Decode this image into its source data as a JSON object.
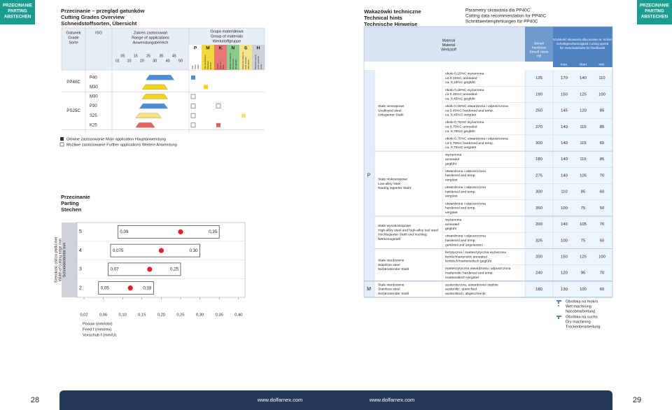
{
  "tabs": {
    "left": [
      "PRZECINANIE",
      "PARTING",
      "ABSTECHEN"
    ],
    "right": [
      "PRZECINANIE",
      "PARTING",
      "ABSTECHEN"
    ]
  },
  "left": {
    "title": [
      "Przecinanie – przegląd gatunków",
      "Cutting Grades Overview",
      "Schneidstoffsorten, Übersicht"
    ],
    "grades_table": {
      "grade_header": [
        "Gatunek",
        "Grade",
        "Sorte"
      ],
      "iso_header": "ISO",
      "range_header": [
        "Zakres zastosowań",
        "Range of applications",
        "Anwendungsbereich"
      ],
      "range_ticks_top": [
        {
          "value": 5,
          "label": "05"
        },
        15,
        25,
        35,
        45
      ],
      "range_ticks_bottom": [
        {
          "value": 1,
          "label": "01"
        },
        10,
        20,
        30,
        40,
        50
      ],
      "range_lim": [
        1,
        50
      ],
      "groups_header": [
        "Grupa materiałowa",
        "Group of materials",
        "Werkstoffgruppe"
      ],
      "groups": [
        {
          "letter": "P",
          "color": "#4a8fd8",
          "desc": [
            "Stal",
            "Steel",
            "Stahl"
          ]
        },
        {
          "letter": "M",
          "color": "#f3d31c",
          "desc": [
            "Stal nierdzewna",
            "Stainless",
            "Rostfrei"
          ]
        },
        {
          "letter": "K",
          "color": "#e8635c",
          "desc": [
            "Żeliwo",
            "Cast iron",
            "Guss"
          ]
        },
        {
          "letter": "N",
          "color": "#7cc47a",
          "desc": [
            "Metale nieżelazne",
            "Non-ferrous",
            "NE-Metalle"
          ]
        },
        {
          "letter": "S",
          "color": "#f6e27a",
          "desc": [
            "Stopy żaroodporne",
            "Heat resistant",
            "Warmfeste"
          ]
        },
        {
          "letter": "H",
          "color": "#c9cdd2",
          "desc": [
            "Materiały twarde",
            "Hard materials",
            "Harte"
          ]
        }
      ],
      "grades": [
        {
          "name": "PP40C",
          "rows": [
            {
              "iso": "P40",
              "range": [
                23,
                45
              ],
              "markers": [
                "main",
                null,
                null,
                null,
                null,
                null
              ]
            },
            {
              "iso": "M30",
              "range": [
                20,
                40
              ],
              "markers": [
                null,
                "main",
                null,
                null,
                null,
                null
              ]
            }
          ]
        },
        {
          "name": "PS25C",
          "rows": [
            {
              "iso": "M30",
              "range": [
                20,
                40
              ],
              "markers": [
                "further",
                null,
                null,
                null,
                null,
                null
              ]
            },
            {
              "iso": "P30",
              "range": [
                18,
                40
              ],
              "markers": [
                "further",
                null,
                "further",
                null,
                null,
                null
              ]
            },
            {
              "iso": "S25",
              "range": [
                15,
                35
              ],
              "markers": [
                "further",
                null,
                null,
                null,
                "main",
                null
              ]
            },
            {
              "iso": "K25",
              "range": [
                15,
                30
              ],
              "markers": [
                "further",
                null,
                "main",
                null,
                null,
                null
              ]
            }
          ]
        }
      ]
    },
    "legend": {
      "main": "Główne zastosowanie Main application Hauptanwendung",
      "further": "Możliwe zastosowanie Further applications Weitere Anwendung"
    }
  },
  "chart_data": {
    "type": "range",
    "title": [
      "Przecinanie",
      "Parting",
      "Stechen"
    ],
    "y_label": [
      "Szerokość ostrza płytki mm",
      "Width of cutting edge mm",
      "Schneidenbreite mm"
    ],
    "x_label": [
      "Posuw (mm/obr)",
      "Feed f (mm/rev)",
      "Vorschub f (mm/U)"
    ],
    "categories": [
      "5",
      "4",
      "3",
      "2"
    ],
    "starts": [
      0.09,
      0.075,
      0.07,
      0.05
    ],
    "start_labels": [
      "0,09",
      "0,075",
      "0,07",
      "0,05"
    ],
    "ends": [
      0.35,
      0.3,
      0.25,
      0.18
    ],
    "end_labels": [
      "0,35",
      "0,30",
      "0,25",
      "0,18"
    ],
    "recommended": [
      0.25,
      0.2,
      0.17,
      0.12
    ],
    "xlim": [
      0.02,
      0.4
    ],
    "xticks": [
      {
        "value": 0.02,
        "label": "0,02"
      },
      {
        "value": 0.06,
        "label": "0,06"
      },
      {
        "value": 0.1,
        "label": "0,10"
      },
      {
        "value": 0.15,
        "label": "0,15"
      },
      {
        "value": 0.2,
        "label": "0,20"
      },
      {
        "value": 0.25,
        "label": "0,25"
      },
      {
        "value": 0.3,
        "label": "0,30"
      },
      {
        "value": 0.35,
        "label": "0,35"
      },
      {
        "value": 0.4,
        "label": "0,40"
      }
    ],
    "bar_color": "#ffffff",
    "dot_color": "#e0202a"
  },
  "right": {
    "title": [
      "Wakazówki techniczne",
      "Technical hints",
      "Technische Hinweise"
    ],
    "subtitle": [
      "Parametry skrawania dla PP40C",
      "Cutting data recommendation for PP40C",
      "Schnittwertempfehlungen für PP40C"
    ],
    "material_header": [
      "Material",
      "Material",
      "Werkstoff"
    ],
    "hardness_header": [
      "Brinell",
      "hardness",
      "Brinell Härte",
      "HB"
    ],
    "speed_header": [
      "Szybkość skrawania dla posuwu w: m/min",
      "Schnittgeschwindigkeit Cutting speed",
      "für Vorschub/Zahn for feed/tooth"
    ],
    "speed_sub": [
      "max.",
      "Start",
      "min."
    ],
    "iso_blocks": [
      {
        "letter": "P",
        "groups": [
          {
            "name": [
              "Stale niestopowe",
              "Unalloyed steel",
              "Unlegierter Stahl"
            ],
            "rows": [
              {
                "desc": [
                  "około 0,15%C wyżarzona",
                  "ca 0,15%C annealed",
                  "ca. 0,15%C geglüht"
                ],
                "hb": 125,
                "speed": [
                  170,
                  140,
                  110
                ]
              },
              {
                "desc": [
                  "około 0,45%C wyżarzona",
                  "ca 0,45%C annealed",
                  "ca. 0,45%C geglüht"
                ],
                "hb": 190,
                "speed": [
                  150,
                  125,
                  100
                ]
              },
              {
                "desc": [
                  "około 0,45%C utwardzona i odpuszczona",
                  "ca 0,45%C hardened and temp.",
                  "ca. 0,45%C vergütet"
                ],
                "hb": 250,
                "speed": [
                  145,
                  120,
                  85
                ]
              },
              {
                "desc": [
                  "około 0,75%C wyżarzona",
                  "ca 0,75%C annealed",
                  "ca. 0,75%C geglüht"
                ],
                "hb": 270,
                "speed": [
                  140,
                  115,
                  85
                ]
              },
              {
                "desc": [
                  "około 0,75%C utwardzona i odpuszczona",
                  "ca 0,75%C hardened and temp.",
                  "ca. 0,75%C vergütet"
                ],
                "hb": 300,
                "speed": [
                  140,
                  115,
                  65
                ]
              }
            ]
          },
          {
            "name": [
              "Stale niskostopowe",
              "Low-alloy steel",
              "Niedrig legierter Stahl"
            ],
            "rows": [
              {
                "desc": [
                  "wyżarzona",
                  "annealed",
                  "geglüht"
                ],
                "hb": 180,
                "speed": [
                  140,
                  115,
                  85
                ]
              },
              {
                "desc": [
                  "utwardzona i odpuszczona",
                  "hardened and temp.",
                  "vergütet"
                ],
                "hb": 275,
                "speed": [
                  140,
                  105,
                  70
                ]
              },
              {
                "desc": [
                  "utwardzona i odpuszczona",
                  "hardened and temp.",
                  "vergütet"
                ],
                "hb": 300,
                "speed": [
                  110,
                  85,
                  60
                ]
              },
              {
                "desc": [
                  "utwardzona i odpuszczona",
                  "hardened and temp.",
                  "vergütet"
                ],
                "hb": 350,
                "speed": [
                  100,
                  75,
                  50
                ]
              }
            ]
          },
          {
            "name": [
              "Stale wysokostopowe",
              "High-alloy steel and high-alloy tool steel",
              "Hochlegierter Stahl und hochleg.",
              "Werkzeugstahl"
            ],
            "rows": [
              {
                "desc": [
                  "wyżarzona",
                  "annealed",
                  "geglüht"
                ],
                "hb": 200,
                "speed": [
                  140,
                  105,
                  70
                ]
              },
              {
                "desc": [
                  "utwardzona i odpuszczona",
                  "hardened and temp.",
                  "gehärtet und angelassen"
                ],
                "hb": 325,
                "speed": [
                  100,
                  75,
                  50
                ]
              }
            ]
          },
          {
            "name": [
              "Stale nierdzewne",
              "Stainless steel",
              "Nichtrostender Stahl"
            ],
            "rows": [
              {
                "desc": [
                  "ferrytyczna / martenzytyczna wyżarzona",
                  "ferritic/martensitic annealed",
                  "ferritisch/martensitisch geglüht"
                ],
                "hb": 200,
                "speed": [
                  150,
                  125,
                  100
                ]
              },
              {
                "desc": [
                  "martenzytyczna utwardzona i odpuszczona",
                  "martensitic hardened and temp.",
                  "martensitisch vergütet"
                ],
                "hb": 240,
                "speed": [
                  120,
                  95,
                  70
                ]
              }
            ]
          }
        ]
      },
      {
        "letter": "M",
        "groups": [
          {
            "name": [
              "Stale nierdzewne",
              "Stainless steel",
              "Nichtrostender Stahl"
            ],
            "rows": [
              {
                "desc": [
                  "austenityczna, utwardzona cieplnie",
                  "austenitic, quenched",
                  "austenitisch, abgeschreckt"
                ],
                "hb": 180,
                "speed": [
                  130,
                  100,
                  60
                ]
              }
            ]
          }
        ]
      }
    ],
    "legend": {
      "wet": [
        "Obróbka na mokro",
        "Wet machining",
        "Nassbearbeitung"
      ],
      "dry": [
        "Obróbka na sucho",
        "Dry machining",
        "Trockenbearbeitung"
      ]
    }
  },
  "footer": {
    "pages": [
      28,
      29
    ],
    "urls": [
      "www.dolfamex.com",
      "www.dolfamex.com"
    ]
  }
}
